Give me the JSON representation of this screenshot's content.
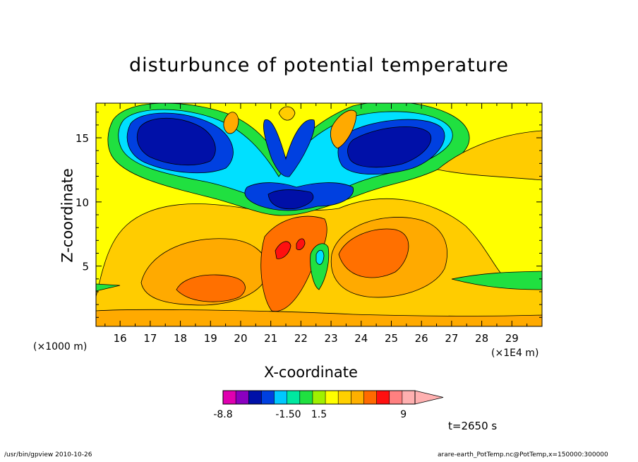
{
  "chart_data": {
    "type": "heatmap",
    "title": "disturbunce of potential temperature",
    "xlabel": "X-coordinate",
    "ylabel": "Z-coordinate",
    "x_unit_left": "(×1000 m)",
    "x_unit_right": "(×1E4 m)",
    "xlim": [
      15.2,
      30.0
    ],
    "ylim": [
      0.3,
      17.7
    ],
    "x_ticks": [
      "16",
      "17",
      "18",
      "19",
      "20",
      "21",
      "22",
      "23",
      "24",
      "25",
      "26",
      "27",
      "28",
      "29"
    ],
    "y_ticks": [
      "5",
      "10",
      "15"
    ],
    "x_tick_values": [
      16,
      17,
      18,
      19,
      20,
      21,
      22,
      23,
      24,
      25,
      26,
      27,
      28,
      29
    ],
    "y_tick_values": [
      5,
      10,
      15
    ],
    "colorbar": {
      "colors": [
        "#e000b0",
        "#8a00c0",
        "#0010a8",
        "#0040e0",
        "#00c8ff",
        "#00e8a0",
        "#20e040",
        "#a0f000",
        "#ffff00",
        "#ffd000",
        "#ffb000",
        "#ff6a00",
        "#ff1010",
        "#ff8080",
        "#ffb0b0"
      ],
      "labels": [
        "-8.8",
        "-1.50",
        "1.5",
        "9"
      ],
      "label_positions": [
        0,
        0.34,
        0.5,
        0.94
      ],
      "extend": "right"
    },
    "annotation": "t=2650 s"
  },
  "footer": {
    "left": "/usr/bin/gpview   2010-10-26",
    "right": "arare-earth_PotTemp.nc@PotTemp,x=150000:300000"
  }
}
